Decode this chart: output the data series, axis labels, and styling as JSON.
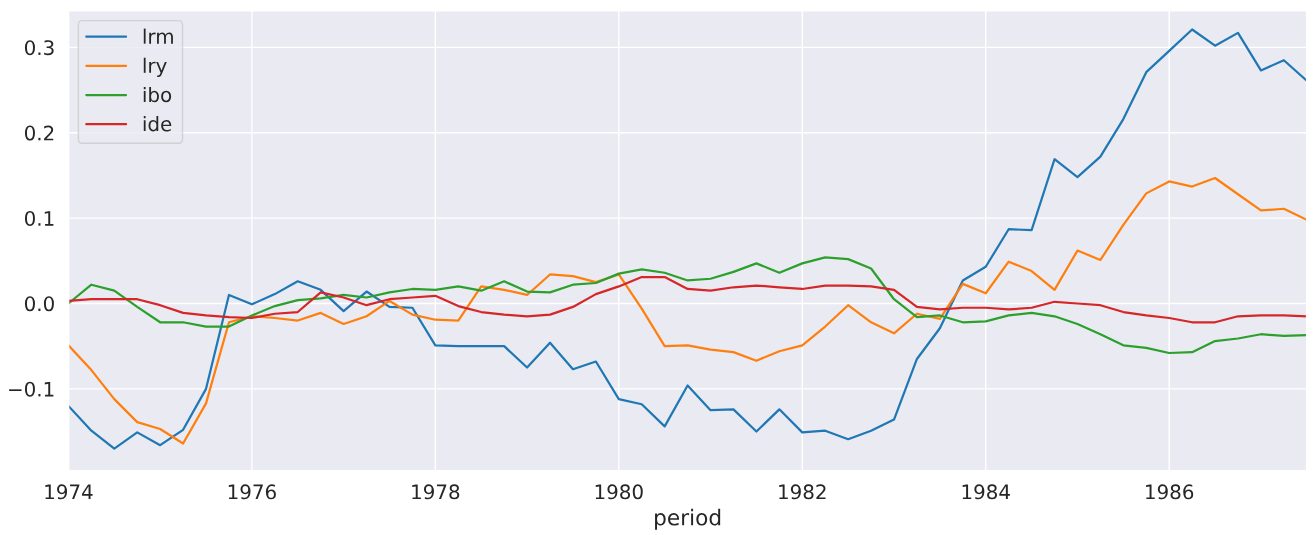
{
  "chart_data": {
    "type": "line",
    "xlabel": "period",
    "x": [
      1974.0,
      1974.25,
      1974.5,
      1974.75,
      1975.0,
      1975.25,
      1975.5,
      1975.75,
      1976.0,
      1976.25,
      1976.5,
      1976.75,
      1977.0,
      1977.25,
      1977.5,
      1977.75,
      1978.0,
      1978.25,
      1978.5,
      1978.75,
      1979.0,
      1979.25,
      1979.5,
      1979.75,
      1980.0,
      1980.25,
      1980.5,
      1980.75,
      1981.0,
      1981.25,
      1981.5,
      1981.75,
      1982.0,
      1982.25,
      1982.5,
      1982.75,
      1983.0,
      1983.25,
      1983.5,
      1983.75,
      1984.0,
      1984.25,
      1984.5,
      1984.75,
      1985.0,
      1985.25,
      1985.5,
      1985.75,
      1986.0,
      1986.25,
      1986.5,
      1986.75,
      1987.0,
      1987.25,
      1987.5
    ],
    "series": [
      {
        "name": "lrm",
        "color": "#1f77b4",
        "values": [
          -0.12,
          -0.149,
          -0.17,
          -0.151,
          -0.166,
          -0.148,
          -0.1,
          0.01,
          -0.001,
          0.011,
          0.026,
          0.016,
          -0.009,
          0.014,
          -0.004,
          -0.005,
          -0.049,
          -0.05,
          -0.05,
          -0.05,
          -0.075,
          -0.046,
          -0.077,
          -0.068,
          -0.112,
          -0.118,
          -0.144,
          -0.096,
          -0.125,
          -0.124,
          -0.15,
          -0.124,
          -0.151,
          -0.149,
          -0.159,
          -0.149,
          -0.136,
          -0.065,
          -0.029,
          0.027,
          0.043,
          0.087,
          0.086,
          0.169,
          0.148,
          0.172,
          0.216,
          0.271,
          0.296,
          0.321,
          0.302,
          0.317,
          0.273,
          0.285,
          0.261
        ]
      },
      {
        "name": "lry",
        "color": "#ff7f0e",
        "values": [
          -0.049,
          -0.078,
          -0.112,
          -0.139,
          -0.147,
          -0.164,
          -0.117,
          -0.022,
          -0.015,
          -0.017,
          -0.02,
          -0.011,
          -0.024,
          -0.015,
          0.003,
          -0.013,
          -0.019,
          -0.02,
          0.02,
          0.016,
          0.01,
          0.034,
          0.032,
          0.025,
          0.034,
          -0.006,
          -0.05,
          -0.049,
          -0.054,
          -0.057,
          -0.067,
          -0.056,
          -0.049,
          -0.027,
          -0.002,
          -0.022,
          -0.035,
          -0.012,
          -0.018,
          0.023,
          0.012,
          0.049,
          0.038,
          0.016,
          0.062,
          0.051,
          0.092,
          0.129,
          0.143,
          0.137,
          0.147,
          0.128,
          0.109,
          0.111,
          0.098
        ]
      },
      {
        "name": "ibo",
        "color": "#2ca02c",
        "values": [
          0.0,
          0.022,
          0.015,
          -0.004,
          -0.022,
          -0.022,
          -0.027,
          -0.027,
          -0.014,
          -0.003,
          0.004,
          0.006,
          0.01,
          0.007,
          0.013,
          0.017,
          0.016,
          0.02,
          0.015,
          0.026,
          0.014,
          0.013,
          0.022,
          0.024,
          0.035,
          0.04,
          0.036,
          0.027,
          0.029,
          0.037,
          0.047,
          0.036,
          0.047,
          0.054,
          0.052,
          0.041,
          0.005,
          -0.016,
          -0.014,
          -0.022,
          -0.021,
          -0.014,
          -0.011,
          -0.015,
          -0.024,
          -0.036,
          -0.049,
          -0.052,
          -0.058,
          -0.057,
          -0.044,
          -0.041,
          -0.036,
          -0.038,
          -0.037
        ]
      },
      {
        "name": "ide",
        "color": "#d62728",
        "values": [
          0.003,
          0.005,
          0.005,
          0.005,
          -0.002,
          -0.011,
          -0.014,
          -0.016,
          -0.017,
          -0.012,
          -0.01,
          0.013,
          0.007,
          -0.002,
          0.005,
          0.007,
          0.009,
          -0.003,
          -0.01,
          -0.013,
          -0.015,
          -0.013,
          -0.004,
          0.011,
          0.02,
          0.031,
          0.031,
          0.017,
          0.015,
          0.019,
          0.021,
          0.019,
          0.017,
          0.021,
          0.021,
          0.02,
          0.016,
          -0.004,
          -0.007,
          -0.005,
          -0.005,
          -0.007,
          -0.005,
          0.002,
          0.0,
          -0.002,
          -0.01,
          -0.014,
          -0.017,
          -0.022,
          -0.022,
          -0.015,
          -0.014,
          -0.014,
          -0.015
        ]
      }
    ],
    "xlim": [
      1974,
      1987.5
    ],
    "xticks": [
      1974,
      1976,
      1978,
      1980,
      1982,
      1984,
      1986
    ],
    "ylim": [
      -0.196,
      0.343
    ],
    "yticks": [
      {
        "value": -0.1,
        "label": "−0.1"
      },
      {
        "value": 0.0,
        "label": "0.0"
      },
      {
        "value": 0.1,
        "label": "0.1"
      },
      {
        "value": 0.2,
        "label": "0.2"
      },
      {
        "value": 0.3,
        "label": "0.3"
      }
    ],
    "grid": true,
    "legend": "upper left",
    "marker": "none",
    "line_style": "solid"
  }
}
